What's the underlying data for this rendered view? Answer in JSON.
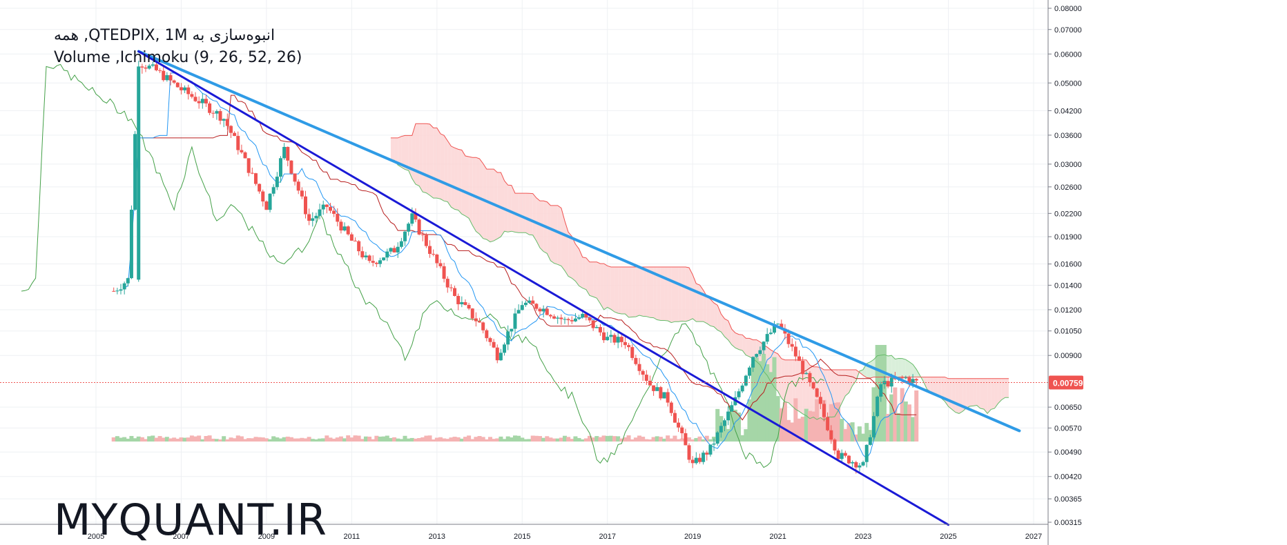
{
  "legend": {
    "line1": "انبوه‌سازی به QTEDPIX, 1M, همه",
    "line2": "Volume ,Ichimoku (9, 26, 52, 26)"
  },
  "watermark": "MYQUANT.IR",
  "colors": {
    "up": "#26a69a",
    "down": "#ef5350",
    "tenkan": "#2196f3",
    "kijun": "#b71c1c",
    "chikou": "#43a047",
    "span_a": "#66bb6a",
    "span_b": "#ef5350",
    "cloud_bear": "#fcd5d5",
    "cloud_bull": "#d2ecd3",
    "trendline_upper": "#2f9be6",
    "trendline_lower": "#1a1ad6",
    "volume_up": "#a5d6a7",
    "volume_down": "#f5b3b3",
    "current_price": "#ef5350"
  },
  "chart_data": {
    "type": "candlestick",
    "title": "QTEDPIX, 1M",
    "y_scale": "log",
    "ylim": [
      0.003,
      0.082
    ],
    "xlim": [
      "2004-01",
      "2027-06"
    ],
    "y_ticks": [
      "0.08000",
      "0.07000",
      "0.06000",
      "0.05000",
      "0.04200",
      "0.03600",
      "0.03000",
      "0.02600",
      "0.02200",
      "0.01900",
      "0.01600",
      "0.01400",
      "0.01200",
      "0.01050",
      "0.00900",
      "0.00759",
      "0.00650",
      "0.00570",
      "0.00490",
      "0.00420",
      "0.00365",
      "0.00315"
    ],
    "x_ticks": [
      "2005",
      "2007",
      "2009",
      "2011",
      "2013",
      "2015",
      "2017",
      "2019",
      "2021",
      "2023",
      "2025",
      "2027"
    ],
    "current_price": "0.00759",
    "ohlc_points": [
      {
        "t": "2005-06",
        "close": 0.0135
      },
      {
        "t": "2005-10",
        "close": 0.0145
      },
      {
        "t": "2006-01",
        "close": 0.057
      },
      {
        "t": "2006-06",
        "close": 0.054
      },
      {
        "t": "2007-01",
        "close": 0.048
      },
      {
        "t": "2007-07",
        "close": 0.044
      },
      {
        "t": "2008-01",
        "close": 0.04
      },
      {
        "t": "2008-06",
        "close": 0.032
      },
      {
        "t": "2009-01",
        "close": 0.023
      },
      {
        "t": "2009-06",
        "close": 0.033
      },
      {
        "t": "2010-01",
        "close": 0.021
      },
      {
        "t": "2010-06",
        "close": 0.023
      },
      {
        "t": "2011-01",
        "close": 0.0185
      },
      {
        "t": "2011-06",
        "close": 0.016
      },
      {
        "t": "2012-01",
        "close": 0.0175
      },
      {
        "t": "2012-06",
        "close": 0.0215
      },
      {
        "t": "2013-01",
        "close": 0.016
      },
      {
        "t": "2013-06",
        "close": 0.013
      },
      {
        "t": "2014-01",
        "close": 0.011
      },
      {
        "t": "2014-06",
        "close": 0.009
      },
      {
        "t": "2015-01",
        "close": 0.0125
      },
      {
        "t": "2015-06",
        "close": 0.0122
      },
      {
        "t": "2016-01",
        "close": 0.0112
      },
      {
        "t": "2016-06",
        "close": 0.0115
      },
      {
        "t": "2017-01",
        "close": 0.01
      },
      {
        "t": "2017-06",
        "close": 0.0098
      },
      {
        "t": "2018-01",
        "close": 0.0075
      },
      {
        "t": "2018-06",
        "close": 0.0068
      },
      {
        "t": "2019-01",
        "close": 0.0045
      },
      {
        "t": "2019-06",
        "close": 0.005
      },
      {
        "t": "2020-01",
        "close": 0.0068
      },
      {
        "t": "2020-06",
        "close": 0.009
      },
      {
        "t": "2021-01",
        "close": 0.011
      },
      {
        "t": "2021-06",
        "close": 0.009
      },
      {
        "t": "2022-01",
        "close": 0.0065
      },
      {
        "t": "2022-06",
        "close": 0.0048
      },
      {
        "t": "2023-01",
        "close": 0.0045
      },
      {
        "t": "2023-06",
        "close": 0.0075
      },
      {
        "t": "2024-01",
        "close": 0.0078
      },
      {
        "t": "2024-04",
        "close": 0.0076
      }
    ],
    "trendlines": [
      {
        "name": "upper",
        "from": {
          "t": "2006-01",
          "y": 0.061
        },
        "to": {
          "t": "2026-09",
          "y": 0.0056
        }
      },
      {
        "name": "lower",
        "from": {
          "t": "2006-01",
          "y": 0.061
        },
        "to": {
          "t": "2025-01",
          "y": 0.0031
        }
      }
    ]
  }
}
